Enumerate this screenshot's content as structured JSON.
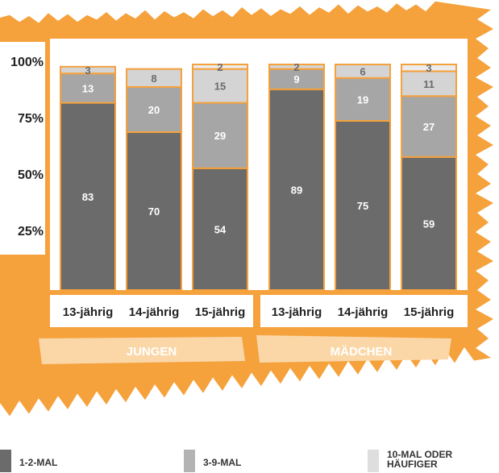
{
  "chart_data": {
    "type": "bar",
    "stacked": true,
    "y_unit": "%",
    "ylim": [
      0,
      100
    ],
    "y_ticks": [
      "25%",
      "50%",
      "75%",
      "100%"
    ],
    "groups": [
      {
        "label": "JUNGEN",
        "categories": [
          "13-jährig",
          "14-jährig",
          "15-jährig"
        ]
      },
      {
        "label": "MÄDCHEN",
        "categories": [
          "13-jährig",
          "14-jährig",
          "15-jährig"
        ]
      }
    ],
    "series": [
      {
        "name": "1-2-MAL",
        "color": "#6b6b6b",
        "values": [
          83,
          70,
          54,
          89,
          75,
          59
        ]
      },
      {
        "name": "3-9-MAL",
        "color": "#a6a6a6",
        "values": [
          13,
          20,
          29,
          9,
          19,
          27
        ]
      },
      {
        "name": "10-MAL ODER HÄUFIGER",
        "color": "#d4d4d4",
        "values": [
          3,
          8,
          15,
          2,
          6,
          11
        ]
      }
    ],
    "extra_segment": {
      "color": "#ececec",
      "values": [
        null,
        null,
        2,
        null,
        null,
        3
      ]
    },
    "colors": {
      "orange": "#f5a13c",
      "bar_outline": "#f5a13c",
      "label": "#ffffff",
      "tick": "#222222"
    },
    "grid": false
  },
  "legend": {
    "items": [
      {
        "label": "1-2-MAL",
        "color": "#6b6b6b"
      },
      {
        "label": "3-9-MAL",
        "color": "#b3b3b3"
      },
      {
        "label": "10-MAL ODER HÄUFIGER",
        "color": "#dedede"
      }
    ]
  }
}
